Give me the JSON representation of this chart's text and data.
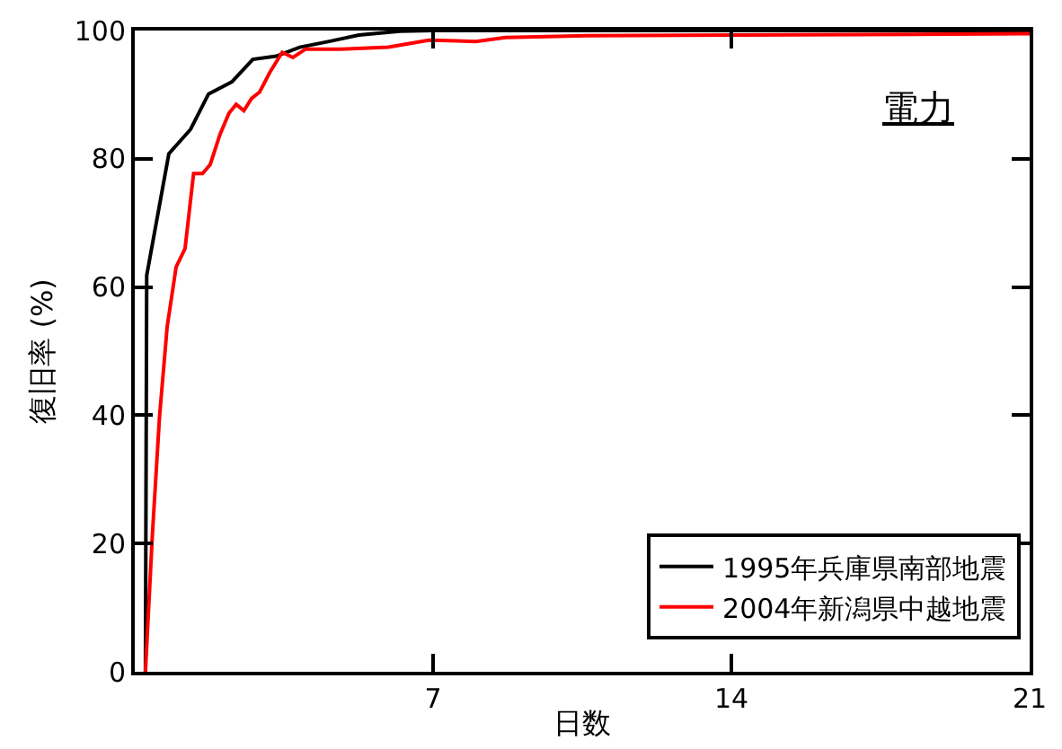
{
  "chart_data": {
    "type": "line",
    "xlabel": "日数",
    "ylabel": "復旧率 (%)",
    "annotations": [
      "電力"
    ],
    "xlim": [
      0,
      21
    ],
    "xticks": [
      7,
      14,
      21
    ],
    "ylim": [
      0,
      100
    ],
    "yticks": [
      0,
      20,
      40,
      60,
      80,
      100
    ],
    "grid": false,
    "legend": "bottom right",
    "marker": "none",
    "line_style": "solid",
    "series": [
      {
        "name": "1995年兵庫県南部地震",
        "color": "#000000",
        "x": [
          0.25,
          0.28,
          0.8,
          1.31,
          1.73,
          2.28,
          2.77,
          3.32,
          3.87,
          4.56,
          5.26,
          6.22,
          7,
          21
        ],
        "values": [
          0,
          61.8,
          80.8,
          84.6,
          90.1,
          92.0,
          95.5,
          96.0,
          97.4,
          98.3,
          99.3,
          99.9,
          100,
          100
        ]
      },
      {
        "name": "2004年新潟県中越地震",
        "color": "#ff0000",
        "x": [
          0.25,
          0.41,
          0.58,
          0.76,
          0.97,
          1.18,
          1.38,
          1.59,
          1.77,
          2.0,
          2.21,
          2.38,
          2.56,
          2.74,
          2.93,
          3.18,
          3.46,
          3.71,
          4.01,
          4.84,
          5.95,
          6.9,
          8.0,
          8.7,
          10.6,
          21
        ],
        "values": [
          0,
          21,
          39.7,
          53.8,
          63.1,
          66,
          77.7,
          77.7,
          79.1,
          83.8,
          87.1,
          88.5,
          87.5,
          89.4,
          90.4,
          93.6,
          96.6,
          95.8,
          97.1,
          97.1,
          97.4,
          98.5,
          98.3,
          98.9,
          99.2,
          99.5
        ]
      }
    ]
  }
}
